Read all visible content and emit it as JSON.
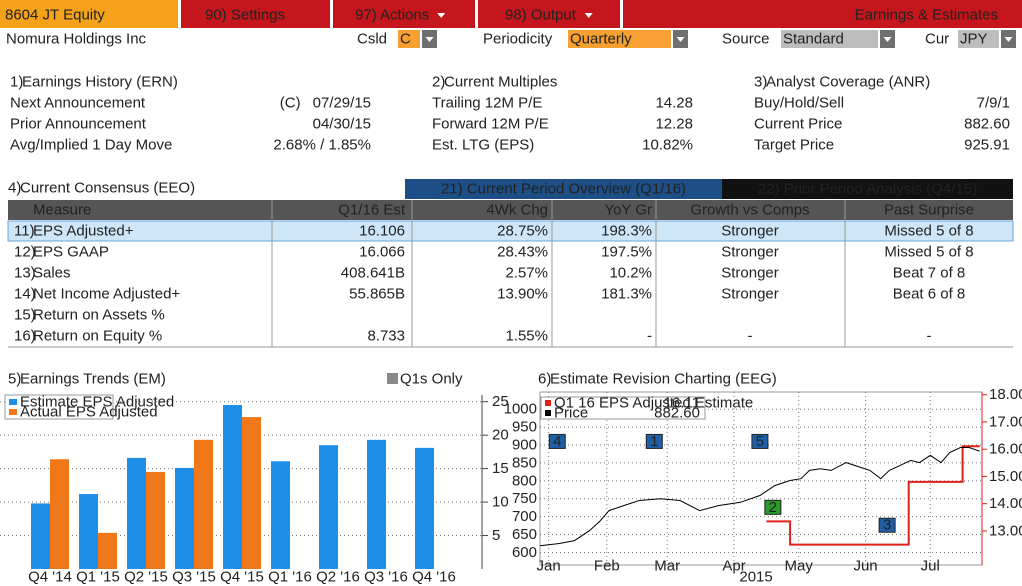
{
  "header": {
    "ticker": "8604 JT Equity",
    "menus": [
      "90) Settings",
      "97) Actions",
      "98) Output"
    ],
    "title": "Earnings & Estimates"
  },
  "toolbar": {
    "company": "Nomura Holdings Inc",
    "fields": [
      {
        "label": "Csld",
        "value": "C"
      },
      {
        "label": "Periodicity",
        "value": "Quarterly"
      },
      {
        "label": "Source",
        "value": "Standard"
      },
      {
        "label": "Cur",
        "value": "JPY"
      }
    ]
  },
  "panels": [
    {
      "num": "1)",
      "title": "Earnings History (ERN)",
      "rows": [
        {
          "label": "Next Announcement",
          "flag": "(C)",
          "value": "07/29/15"
        },
        {
          "label": "Prior Announcement",
          "value": "04/30/15"
        },
        {
          "label": "Avg/Implied 1 Day Move",
          "value": "2.68% / 1.85%"
        }
      ]
    },
    {
      "num": "2)",
      "title": "Current Multiples",
      "rows": [
        {
          "label": "Trailing 12M P/E",
          "value": "14.28"
        },
        {
          "label": "Forward 12M P/E",
          "value": "12.28"
        },
        {
          "label": "Est. LTG (EPS)",
          "value": "10.82%"
        }
      ]
    },
    {
      "num": "3)",
      "title": "Analyst Coverage (ANR)",
      "rows": [
        {
          "label": "Buy/Hold/Sell",
          "value": "7/9/1"
        },
        {
          "label": "Current Price",
          "value": "882.60"
        },
        {
          "label": "Target Price",
          "value": "925.91"
        }
      ]
    }
  ],
  "consensus": {
    "num": "4)",
    "title": "Current Consensus (EEO)",
    "tabs": [
      "21) Current Period Overview (Q1/16)",
      "22) Prior Period Analysis (Q4/15)"
    ],
    "columns": [
      "Measure",
      "Q1/16 Est",
      "4Wk Chg",
      "YoY Gr",
      "Growth vs Comps",
      "Past Surprise"
    ],
    "rows": [
      {
        "num": "11)",
        "cells": [
          "EPS Adjusted+",
          "16.106",
          "28.75%",
          "198.3%",
          "Stronger",
          "Missed 5 of 8"
        ]
      },
      {
        "num": "12)",
        "cells": [
          "EPS GAAP",
          "16.066",
          "28.43%",
          "197.5%",
          "Stronger",
          "Missed 5 of 8"
        ]
      },
      {
        "num": "13)",
        "cells": [
          "Sales",
          "408.641B",
          "2.57%",
          "10.2%",
          "Stronger",
          "Beat 7 of 8"
        ]
      },
      {
        "num": "14)",
        "cells": [
          "Net Income Adjusted+",
          "55.865B",
          "13.90%",
          "181.3%",
          "Stronger",
          "Beat 6 of 8"
        ]
      },
      {
        "num": "15)",
        "cells": [
          "Return on Assets %",
          null,
          null,
          null,
          null,
          null
        ]
      },
      {
        "num": "16)",
        "cells": [
          "Return on Equity %",
          "8.733",
          "1.55%",
          "-",
          "-",
          "-"
        ]
      }
    ]
  },
  "chart_data": [
    {
      "type": "bar",
      "num": "5)",
      "title": "Earnings Trends (EM)",
      "toggle": "Q1s Only",
      "categories": [
        "Q4 '14",
        "Q1 '15",
        "Q2 '15",
        "Q3 '15",
        "Q4 '15",
        "Q1 '16",
        "Q2 '16",
        "Q3 '16",
        "Q4 '16"
      ],
      "series": [
        {
          "name": "Estimate EPS Adjusted",
          "color": "#1e8fe8",
          "values": [
            9.8,
            11.2,
            16.6,
            15.1,
            24.5,
            16.1,
            18.5,
            19.3,
            18.1
          ]
        },
        {
          "name": "Actual EPS Adjusted",
          "color": "#f07818",
          "values": [
            16.4,
            5.4,
            14.5,
            19.3,
            22.7,
            null,
            null,
            null,
            null
          ]
        }
      ],
      "ylim": [
        0,
        26
      ],
      "yticks": [
        5,
        10,
        15,
        20,
        25
      ],
      "grid": true,
      "legend": "upper left"
    },
    {
      "type": "line",
      "num": "6)",
      "title": "Estimate Revision Charting (EEG)",
      "xlim": [
        0,
        205
      ],
      "xticks": [
        {
          "value": 4,
          "label": "Jan"
        },
        {
          "value": 31,
          "label": "Feb"
        },
        {
          "value": 59,
          "label": "Mar"
        },
        {
          "value": 90,
          "label": "Apr"
        },
        {
          "value": 120,
          "label": "May"
        },
        {
          "value": 151,
          "label": "Jun"
        },
        {
          "value": 181,
          "label": "Jul"
        }
      ],
      "x_caption": "2015",
      "ylim": [
        565,
        1048
      ],
      "yticks": [
        600,
        650,
        700,
        750,
        800,
        850,
        900,
        950,
        1000
      ],
      "y2lim": [
        11.75,
        18.1
      ],
      "y2ticks": [
        {
          "value": 13,
          "label": "13.00"
        },
        {
          "value": 14,
          "label": "14.00"
        },
        {
          "value": 15,
          "label": "15.00"
        },
        {
          "value": 16,
          "label": "16.00"
        },
        {
          "value": 17,
          "label": "17.00"
        },
        {
          "value": 18,
          "label": "18.00"
        }
      ],
      "grid": true,
      "legend": "upper left",
      "series": [
        {
          "name": "Q1 16 EPS Adjusted Estimate",
          "last": "16.11",
          "color": "#e0201c",
          "axis": "y2",
          "x": [
            105,
            116,
            116,
            171,
            171,
            196,
            196,
            204
          ],
          "values": [
            13.35,
            13.35,
            12.5,
            12.5,
            14.8,
            14.8,
            16.11,
            16.11
          ]
        },
        {
          "name": "Price",
          "last": "882.60",
          "color": "#000000",
          "x": [
            0,
            9,
            16,
            23,
            28,
            32,
            39,
            46,
            56,
            65,
            74,
            83,
            93,
            102,
            109,
            116,
            121,
            125,
            130,
            135,
            142,
            149,
            153,
            158,
            162,
            167,
            172,
            176,
            181,
            186,
            190,
            195,
            199,
            204
          ],
          "values": [
            619,
            625,
            633,
            661,
            689,
            717,
            731,
            745,
            750,
            745,
            717,
            731,
            740,
            759,
            787,
            801,
            806,
            829,
            834,
            829,
            851,
            837,
            829,
            806,
            829,
            843,
            857,
            851,
            871,
            851,
            879,
            893,
            893,
            882.6
          ]
        }
      ],
      "events": [
        {
          "label": "4",
          "x": 8,
          "y": 910,
          "color": "#1f5fa8"
        },
        {
          "label": "1",
          "x": 53,
          "y": 910,
          "color": "#1f5fa8"
        },
        {
          "label": "5",
          "x": 102,
          "y": 910,
          "color": "#1f5fa8"
        },
        {
          "label": "2",
          "x": 108,
          "y": 726,
          "color": "#2a9a2a"
        },
        {
          "label": "3",
          "x": 161,
          "y": 676,
          "color": "#1f5fa8"
        }
      ]
    }
  ]
}
